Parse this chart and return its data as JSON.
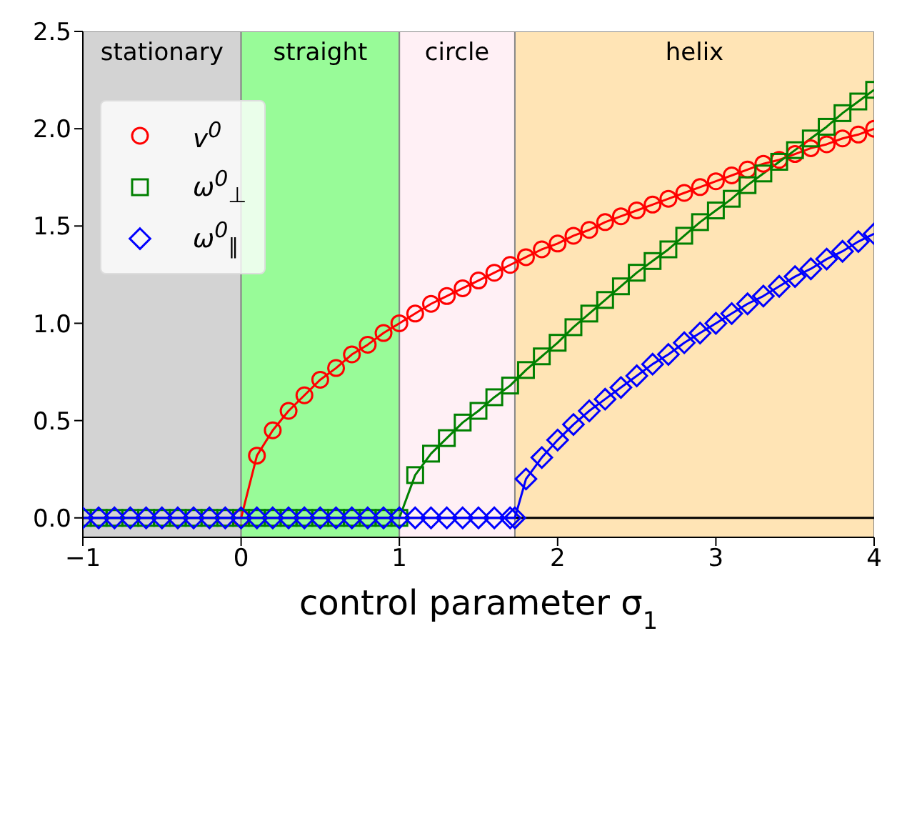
{
  "chart_data": {
    "type": "line",
    "xlabel": "control parameter σ$_{1}$",
    "xlim": [
      -1,
      4
    ],
    "ylim": [
      -0.1,
      2.5
    ],
    "xticks": [
      {
        "value": -1,
        "label": "−1"
      },
      0,
      1,
      2,
      3,
      4
    ],
    "yticks": [
      {
        "value": 0,
        "label": "0.0"
      },
      {
        "value": 0.5,
        "label": "0.5"
      },
      {
        "value": 1,
        "label": "1.0"
      },
      {
        "value": 1.5,
        "label": "1.5"
      },
      {
        "value": 2,
        "label": "2.0"
      },
      {
        "value": 2.5,
        "label": "2.5"
      }
    ],
    "grid": false,
    "legend": "top left",
    "line_style": "solid",
    "bands": [
      {
        "axis": "x",
        "from": -1,
        "to": 0,
        "label": "stationary",
        "color": "#d3d3d3"
      },
      {
        "axis": "x",
        "from": 0,
        "to": 1,
        "label": "straight",
        "color": "#98fb98"
      },
      {
        "axis": "x",
        "from": 1,
        "to": 1.73,
        "label": "circle",
        "color": "#fff0f5"
      },
      {
        "axis": "x",
        "from": 1.73,
        "to": 4,
        "label": "helix",
        "color": "#ffe4b5"
      }
    ],
    "ref_lines": [
      {
        "axis": "y",
        "value": 0,
        "color": "#000000"
      }
    ],
    "series": [
      {
        "name": "v$^{0}$",
        "color": "#ff0000",
        "marker": "circle",
        "x": [
          0,
          0.1,
          0.2,
          0.3,
          0.4,
          0.5,
          0.6,
          0.7,
          0.8,
          0.9,
          1,
          1.1,
          1.2,
          1.3,
          1.4,
          1.5,
          1.6,
          1.7,
          1.8,
          1.9,
          2,
          2.1,
          2.2,
          2.3,
          2.4,
          2.5,
          2.6,
          2.7,
          2.8,
          2.9,
          3,
          3.1,
          3.2,
          3.3,
          3.4,
          3.5,
          3.6,
          3.7,
          3.8,
          3.9,
          4
        ],
        "values": [
          0,
          0.32,
          0.45,
          0.55,
          0.63,
          0.71,
          0.77,
          0.84,
          0.89,
          0.95,
          1,
          1.05,
          1.1,
          1.14,
          1.18,
          1.22,
          1.26,
          1.3,
          1.34,
          1.38,
          1.41,
          1.45,
          1.48,
          1.52,
          1.55,
          1.58,
          1.61,
          1.64,
          1.67,
          1.7,
          1.73,
          1.76,
          1.79,
          1.82,
          1.84,
          1.87,
          1.9,
          1.92,
          1.95,
          1.97,
          2
        ]
      },
      {
        "name": "ω$^{0}$$_{⊥}$",
        "color": "#008000",
        "marker": "square",
        "x": [
          -1,
          -0.9,
          -0.8,
          -0.7,
          -0.6,
          -0.5,
          -0.4,
          -0.3,
          -0.2,
          -0.1,
          0,
          0.1,
          0.2,
          0.3,
          0.4,
          0.5,
          0.6,
          0.7,
          0.8,
          0.9,
          1,
          1.1,
          1.2,
          1.3,
          1.4,
          1.5,
          1.6,
          1.7,
          1.8,
          1.9,
          2,
          2.1,
          2.2,
          2.3,
          2.4,
          2.5,
          2.6,
          2.7,
          2.8,
          2.9,
          3,
          3.1,
          3.2,
          3.3,
          3.4,
          3.5,
          3.6,
          3.7,
          3.8,
          3.9,
          4
        ],
        "values": [
          0,
          0,
          0,
          0,
          0,
          0,
          0,
          0,
          0,
          0,
          0,
          0,
          0,
          0,
          0,
          0,
          0,
          0,
          0,
          0,
          0,
          0.22,
          0.33,
          0.41,
          0.49,
          0.55,
          0.62,
          0.68,
          0.76,
          0.83,
          0.9,
          0.98,
          1.05,
          1.12,
          1.19,
          1.26,
          1.32,
          1.38,
          1.45,
          1.52,
          1.58,
          1.64,
          1.71,
          1.77,
          1.83,
          1.89,
          1.95,
          2.01,
          2.08,
          2.14,
          2.2
        ]
      },
      {
        "name": "ω$^{0}$$_{∥}$",
        "color": "#0000ff",
        "marker": "diamond",
        "x": [
          -1,
          -0.9,
          -0.8,
          -0.7,
          -0.6,
          -0.5,
          -0.4,
          -0.3,
          -0.2,
          -0.1,
          0,
          0.1,
          0.2,
          0.3,
          0.4,
          0.5,
          0.6,
          0.7,
          0.8,
          0.9,
          1,
          1.1,
          1.2,
          1.3,
          1.4,
          1.5,
          1.6,
          1.7,
          1.73,
          1.8,
          1.9,
          2,
          2.1,
          2.2,
          2.3,
          2.4,
          2.5,
          2.6,
          2.7,
          2.8,
          2.9,
          3,
          3.1,
          3.2,
          3.3,
          3.4,
          3.5,
          3.6,
          3.7,
          3.8,
          3.9,
          4
        ],
        "values": [
          0,
          0,
          0,
          0,
          0,
          0,
          0,
          0,
          0,
          0,
          0,
          0,
          0,
          0,
          0,
          0,
          0,
          0,
          0,
          0,
          0,
          0,
          0,
          0,
          0,
          0,
          0,
          0,
          0,
          0.2,
          0.31,
          0.4,
          0.48,
          0.55,
          0.61,
          0.67,
          0.73,
          0.79,
          0.84,
          0.9,
          0.95,
          1,
          1.05,
          1.1,
          1.14,
          1.19,
          1.24,
          1.28,
          1.33,
          1.37,
          1.42,
          1.46
        ]
      }
    ]
  }
}
